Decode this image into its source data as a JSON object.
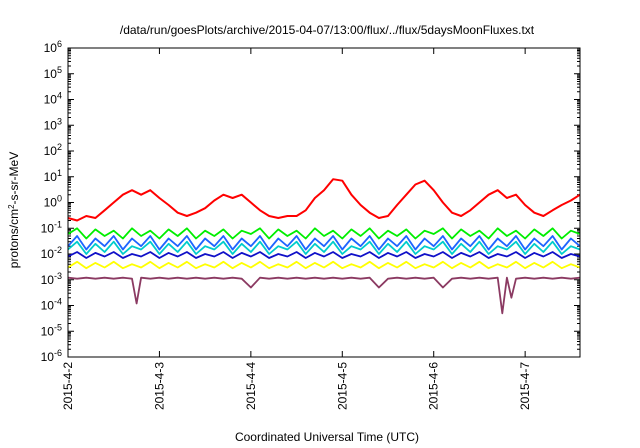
{
  "chart_data": {
    "type": "line",
    "title": "/data/run/goesPlots/archive/2015-04-07/13:00/flux/../flux/5daysMoonFluxes.txt",
    "xlabel": "Coordinated Universal Time (UTC)",
    "ylabel_main": "protons/cm",
    "ylabel_sup": "2",
    "ylabel_rest": "-s-sr-MeV",
    "y_scale": "log",
    "ylim": [
      1e-06,
      1000000.0
    ],
    "y_ticks": [
      {
        "base": "10",
        "exp": "-6"
      },
      {
        "base": "10",
        "exp": "-5"
      },
      {
        "base": "10",
        "exp": "-4"
      },
      {
        "base": "10",
        "exp": "-3"
      },
      {
        "base": "10",
        "exp": "-2"
      },
      {
        "base": "10",
        "exp": "-1"
      },
      {
        "base": "10",
        "exp": "0"
      },
      {
        "base": "10",
        "exp": "1"
      },
      {
        "base": "10",
        "exp": "2"
      },
      {
        "base": "10",
        "exp": "3"
      },
      {
        "base": "10",
        "exp": "4"
      },
      {
        "base": "10",
        "exp": "5"
      },
      {
        "base": "10",
        "exp": "6"
      }
    ],
    "x_ticks": [
      "2015-4-2",
      "2015-4-3",
      "2015-4-4",
      "2015-4-5",
      "2015-4-6",
      "2015-4-7"
    ],
    "x_range_days": [
      0,
      5.6
    ],
    "grid": false,
    "legend": "none",
    "series": [
      {
        "color": "#ff0000",
        "x": [
          0,
          0.1,
          0.2,
          0.3,
          0.4,
          0.5,
          0.6,
          0.7,
          0.8,
          0.9,
          1.0,
          1.1,
          1.2,
          1.3,
          1.4,
          1.5,
          1.6,
          1.7,
          1.8,
          1.9,
          2.0,
          2.1,
          2.2,
          2.3,
          2.4,
          2.5,
          2.6,
          2.7,
          2.8,
          2.9,
          3.0,
          3.1,
          3.2,
          3.3,
          3.4,
          3.5,
          3.6,
          3.7,
          3.8,
          3.9,
          4.0,
          4.1,
          4.2,
          4.3,
          4.4,
          4.5,
          4.6,
          4.7,
          4.8,
          4.9,
          5.0,
          5.1,
          5.2,
          5.3,
          5.4,
          5.5,
          5.6
        ],
        "y": [
          0.25,
          0.2,
          0.3,
          0.25,
          0.5,
          1.0,
          2.0,
          3.0,
          2.0,
          3.0,
          1.5,
          0.8,
          0.4,
          0.3,
          0.4,
          0.6,
          1.2,
          2.0,
          1.5,
          2.0,
          1.0,
          0.5,
          0.3,
          0.25,
          0.3,
          0.3,
          0.5,
          1.5,
          3.0,
          8.0,
          7.0,
          2.0,
          0.8,
          0.4,
          0.25,
          0.3,
          0.8,
          2.0,
          5.0,
          7.0,
          3.0,
          1.0,
          0.4,
          0.3,
          0.5,
          1.0,
          2.0,
          3.0,
          1.5,
          2.0,
          0.8,
          0.4,
          0.3,
          0.5,
          0.8,
          1.2,
          2.0
        ]
      },
      {
        "color": "#00ee00",
        "x": [
          0,
          0.1,
          0.2,
          0.3,
          0.4,
          0.5,
          0.6,
          0.7,
          0.8,
          0.9,
          1.0,
          1.1,
          1.2,
          1.3,
          1.4,
          1.5,
          1.6,
          1.7,
          1.8,
          1.9,
          2.0,
          2.1,
          2.2,
          2.3,
          2.4,
          2.5,
          2.6,
          2.7,
          2.8,
          2.9,
          3.0,
          3.1,
          3.2,
          3.3,
          3.4,
          3.5,
          3.6,
          3.7,
          3.8,
          3.9,
          4.0,
          4.1,
          4.2,
          4.3,
          4.4,
          4.5,
          4.6,
          4.7,
          4.8,
          4.9,
          5.0,
          5.1,
          5.2,
          5.3,
          5.4,
          5.5,
          5.6
        ],
        "y": [
          0.06,
          0.1,
          0.04,
          0.09,
          0.05,
          0.08,
          0.04,
          0.1,
          0.05,
          0.08,
          0.04,
          0.09,
          0.05,
          0.1,
          0.04,
          0.08,
          0.05,
          0.09,
          0.04,
          0.08,
          0.06,
          0.1,
          0.04,
          0.09,
          0.05,
          0.08,
          0.04,
          0.1,
          0.05,
          0.08,
          0.04,
          0.09,
          0.05,
          0.1,
          0.04,
          0.08,
          0.05,
          0.09,
          0.04,
          0.08,
          0.06,
          0.1,
          0.04,
          0.09,
          0.05,
          0.08,
          0.04,
          0.1,
          0.05,
          0.08,
          0.04,
          0.09,
          0.05,
          0.1,
          0.04,
          0.08,
          0.06
        ]
      },
      {
        "color": "#00cccc",
        "x": [
          0,
          0.1,
          0.2,
          0.3,
          0.4,
          0.5,
          0.6,
          0.7,
          0.8,
          0.9,
          1.0,
          1.1,
          1.2,
          1.3,
          1.4,
          1.5,
          1.6,
          1.7,
          1.8,
          1.9,
          2.0,
          2.1,
          2.2,
          2.3,
          2.4,
          2.5,
          2.6,
          2.7,
          2.8,
          2.9,
          3.0,
          3.1,
          3.2,
          3.3,
          3.4,
          3.5,
          3.6,
          3.7,
          3.8,
          3.9,
          4.0,
          4.1,
          4.2,
          4.3,
          4.4,
          4.5,
          4.6,
          4.7,
          4.8,
          4.9,
          5.0,
          5.1,
          5.2,
          5.3,
          5.4,
          5.5,
          5.6
        ],
        "y": [
          0.015,
          0.03,
          0.01,
          0.025,
          0.012,
          0.03,
          0.01,
          0.02,
          0.015,
          0.03,
          0.01,
          0.025,
          0.012,
          0.03,
          0.01,
          0.02,
          0.015,
          0.03,
          0.01,
          0.025,
          0.012,
          0.03,
          0.01,
          0.02,
          0.015,
          0.03,
          0.01,
          0.025,
          0.012,
          0.03,
          0.01,
          0.02,
          0.015,
          0.03,
          0.01,
          0.025,
          0.012,
          0.03,
          0.01,
          0.02,
          0.015,
          0.03,
          0.01,
          0.025,
          0.012,
          0.03,
          0.01,
          0.02,
          0.015,
          0.03,
          0.01,
          0.025,
          0.012,
          0.03,
          0.01,
          0.02,
          0.015
        ]
      },
      {
        "color": "#1e64ff",
        "x": [
          0,
          0.1,
          0.2,
          0.3,
          0.4,
          0.5,
          0.6,
          0.7,
          0.8,
          0.9,
          1.0,
          1.1,
          1.2,
          1.3,
          1.4,
          1.5,
          1.6,
          1.7,
          1.8,
          1.9,
          2.0,
          2.1,
          2.2,
          2.3,
          2.4,
          2.5,
          2.6,
          2.7,
          2.8,
          2.9,
          3.0,
          3.1,
          3.2,
          3.3,
          3.4,
          3.5,
          3.6,
          3.7,
          3.8,
          3.9,
          4.0,
          4.1,
          4.2,
          4.3,
          4.4,
          4.5,
          4.6,
          4.7,
          4.8,
          4.9,
          5.0,
          5.1,
          5.2,
          5.3,
          5.4,
          5.5,
          5.6
        ],
        "y": [
          0.02,
          0.05,
          0.015,
          0.04,
          0.02,
          0.05,
          0.015,
          0.04,
          0.02,
          0.05,
          0.015,
          0.04,
          0.02,
          0.05,
          0.015,
          0.04,
          0.02,
          0.05,
          0.015,
          0.04,
          0.02,
          0.05,
          0.015,
          0.04,
          0.02,
          0.05,
          0.015,
          0.04,
          0.02,
          0.05,
          0.015,
          0.04,
          0.02,
          0.05,
          0.015,
          0.04,
          0.02,
          0.05,
          0.015,
          0.04,
          0.02,
          0.05,
          0.015,
          0.04,
          0.02,
          0.05,
          0.015,
          0.04,
          0.02,
          0.05,
          0.015,
          0.04,
          0.02,
          0.05,
          0.015,
          0.04,
          0.02
        ]
      },
      {
        "color": "#1010c8",
        "x": [
          0,
          0.1,
          0.2,
          0.3,
          0.4,
          0.5,
          0.6,
          0.7,
          0.8,
          0.9,
          1.0,
          1.1,
          1.2,
          1.3,
          1.4,
          1.5,
          1.6,
          1.7,
          1.8,
          1.9,
          2.0,
          2.1,
          2.2,
          2.3,
          2.4,
          2.5,
          2.6,
          2.7,
          2.8,
          2.9,
          3.0,
          3.1,
          3.2,
          3.3,
          3.4,
          3.5,
          3.6,
          3.7,
          3.8,
          3.9,
          4.0,
          4.1,
          4.2,
          4.3,
          4.4,
          4.5,
          4.6,
          4.7,
          4.8,
          4.9,
          5.0,
          5.1,
          5.2,
          5.3,
          5.4,
          5.5,
          5.6
        ],
        "y": [
          0.008,
          0.012,
          0.007,
          0.011,
          0.008,
          0.012,
          0.007,
          0.01,
          0.008,
          0.012,
          0.007,
          0.011,
          0.008,
          0.012,
          0.007,
          0.01,
          0.008,
          0.012,
          0.007,
          0.011,
          0.008,
          0.012,
          0.007,
          0.01,
          0.008,
          0.012,
          0.007,
          0.011,
          0.008,
          0.012,
          0.007,
          0.01,
          0.008,
          0.012,
          0.007,
          0.011,
          0.008,
          0.012,
          0.007,
          0.01,
          0.008,
          0.012,
          0.007,
          0.011,
          0.008,
          0.012,
          0.007,
          0.01,
          0.008,
          0.012,
          0.007,
          0.011,
          0.008,
          0.012,
          0.007,
          0.01,
          0.008
        ]
      },
      {
        "color": "#ffff00",
        "x": [
          0,
          0.1,
          0.2,
          0.3,
          0.4,
          0.5,
          0.6,
          0.7,
          0.8,
          0.9,
          1.0,
          1.1,
          1.2,
          1.3,
          1.4,
          1.5,
          1.6,
          1.7,
          1.8,
          1.9,
          2.0,
          2.1,
          2.2,
          2.3,
          2.4,
          2.5,
          2.6,
          2.7,
          2.8,
          2.9,
          3.0,
          3.1,
          3.2,
          3.3,
          3.4,
          3.5,
          3.6,
          3.7,
          3.8,
          3.9,
          4.0,
          4.1,
          4.2,
          4.3,
          4.4,
          4.5,
          4.6,
          4.7,
          4.8,
          4.9,
          5.0,
          5.1,
          5.2,
          5.3,
          5.4,
          5.5,
          5.6
        ],
        "y": [
          0.003,
          0.005,
          0.0028,
          0.0045,
          0.003,
          0.005,
          0.0028,
          0.004,
          0.003,
          0.005,
          0.0028,
          0.0045,
          0.003,
          0.005,
          0.0028,
          0.004,
          0.003,
          0.005,
          0.0028,
          0.0045,
          0.003,
          0.005,
          0.0028,
          0.004,
          0.003,
          0.005,
          0.0028,
          0.0045,
          0.003,
          0.005,
          0.0028,
          0.004,
          0.003,
          0.005,
          0.0028,
          0.0045,
          0.003,
          0.005,
          0.0028,
          0.004,
          0.003,
          0.005,
          0.0028,
          0.0045,
          0.003,
          0.005,
          0.0028,
          0.004,
          0.003,
          0.005,
          0.0028,
          0.0045,
          0.003,
          0.005,
          0.0028,
          0.004,
          0.003
        ]
      },
      {
        "color": "#8b3a62",
        "x": [
          0,
          0.1,
          0.2,
          0.3,
          0.4,
          0.5,
          0.6,
          0.7,
          0.75,
          0.8,
          0.9,
          1.0,
          1.1,
          1.2,
          1.3,
          1.4,
          1.5,
          1.6,
          1.7,
          1.8,
          1.9,
          2.0,
          2.1,
          2.2,
          2.3,
          2.4,
          2.5,
          2.6,
          2.7,
          2.8,
          2.9,
          3.0,
          3.1,
          3.2,
          3.3,
          3.4,
          3.5,
          3.6,
          3.7,
          3.8,
          3.9,
          4.0,
          4.1,
          4.2,
          4.3,
          4.4,
          4.5,
          4.6,
          4.7,
          4.75,
          4.8,
          4.85,
          4.9,
          5.0,
          5.1,
          5.2,
          5.3,
          5.4,
          5.5,
          5.6
        ],
        "y": [
          0.0012,
          0.0011,
          0.0012,
          0.0011,
          0.0012,
          0.0011,
          0.0012,
          0.0011,
          0.00012,
          0.0012,
          0.0011,
          0.0012,
          0.0011,
          0.0012,
          0.0011,
          0.0012,
          0.0011,
          0.0012,
          0.0011,
          0.0012,
          0.0011,
          0.0005,
          0.0012,
          0.0011,
          0.0012,
          0.0011,
          0.0012,
          0.0011,
          0.0012,
          0.0011,
          0.0012,
          0.0011,
          0.0012,
          0.0011,
          0.0012,
          0.0005,
          0.0011,
          0.0012,
          0.0011,
          0.0012,
          0.0011,
          0.0012,
          0.0005,
          0.0011,
          0.0012,
          0.0011,
          0.0012,
          0.0011,
          0.0012,
          5e-05,
          0.0012,
          0.0002,
          0.0011,
          0.0012,
          0.0011,
          0.0012,
          0.0011,
          0.0012,
          0.0011,
          0.0012
        ]
      }
    ]
  }
}
